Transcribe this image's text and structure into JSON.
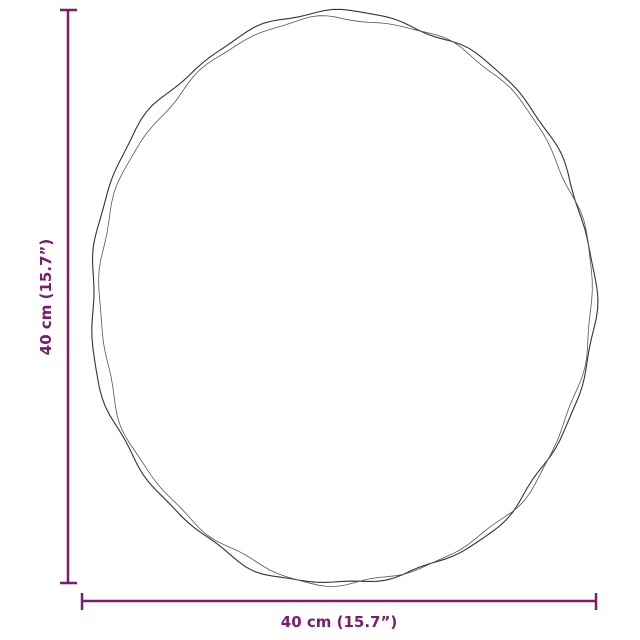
{
  "dimensions": {
    "width_label": "40 cm (15.7”)",
    "height_label": "40 cm (15.7”)"
  },
  "colors": {
    "dimension_line": "#7b1c6f",
    "outline": "#333333"
  }
}
